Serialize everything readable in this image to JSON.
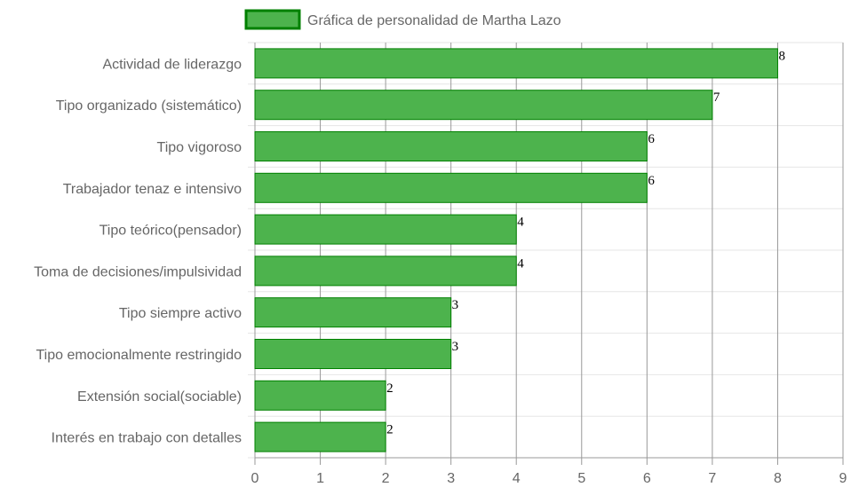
{
  "chart_data": {
    "type": "bar",
    "orientation": "horizontal",
    "categories": [
      "Actividad de liderazgo",
      "Tipo organizado (sistemático)",
      "Tipo vigoroso",
      "Trabajador tenaz e intensivo",
      "Tipo teórico(pensador)",
      "Toma de decisiones/impulsividad",
      "Tipo siempre activo",
      "Tipo emocionalmente restringido",
      "Extensión social(sociable)",
      "Interés en trabajo con detalles"
    ],
    "series": [
      {
        "name": "Gráfica de personalidad de Martha Lazo",
        "values": [
          8,
          7,
          6,
          6,
          4,
          4,
          3,
          3,
          2,
          2
        ]
      }
    ],
    "xlim": [
      0,
      9
    ],
    "x_ticks": [
      0,
      1,
      2,
      3,
      4,
      5,
      6,
      7,
      8,
      9
    ],
    "grid": true,
    "legend_position": "top",
    "data_labels": true
  },
  "colors": {
    "bar_fill": "#4db34d",
    "bar_border": "#008000",
    "grid_vertical": "#999999",
    "grid_horizontal": "#e6e6e6",
    "text": "#666666"
  }
}
